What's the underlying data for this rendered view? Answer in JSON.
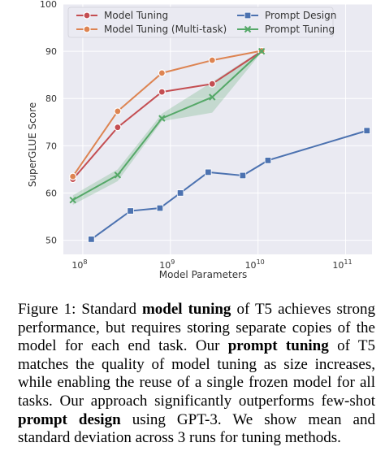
{
  "chart_data": {
    "type": "line",
    "xlabel": "Model Parameters",
    "ylabel": "SuperGLUE Score",
    "xscale": "log",
    "xlim": [
      60000000,
      200000000000
    ],
    "ylim": [
      47,
      100
    ],
    "yticks": [
      50,
      60,
      70,
      80,
      90,
      100
    ],
    "xticks": [
      {
        "value": 100000000,
        "base": "10",
        "exp": "8"
      },
      {
        "value": 1000000000,
        "base": "10",
        "exp": "9"
      },
      {
        "value": 10000000000,
        "base": "10",
        "exp": "10"
      },
      {
        "value": 100000000000,
        "base": "10",
        "exp": "11"
      }
    ],
    "grid": true,
    "legend_position": "top",
    "series": [
      {
        "name": "Model Tuning",
        "color": "#c44e52",
        "marker": "circle",
        "x": [
          77000000,
          250000000,
          800000000,
          3000000000,
          11000000000
        ],
        "y": [
          62.9,
          73.9,
          81.4,
          83.1,
          90.0
        ]
      },
      {
        "name": "Model Tuning (Multi-task)",
        "color": "#dd8452",
        "marker": "circle",
        "x": [
          77000000,
          250000000,
          800000000,
          3000000000,
          11000000000
        ],
        "y": [
          63.5,
          77.3,
          85.4,
          88.1,
          90.1
        ]
      },
      {
        "name": "Prompt Design",
        "color": "#4c72b0",
        "marker": "square",
        "x": [
          125000000,
          350000000,
          760000000,
          1300000000,
          2700000000,
          6700000000,
          13000000000,
          175000000000
        ],
        "y": [
          50.2,
          56.2,
          56.8,
          60.0,
          64.4,
          63.7,
          66.9,
          73.2
        ]
      },
      {
        "name": "Prompt Tuning",
        "color": "#55a868",
        "marker": "x",
        "x": [
          77000000,
          250000000,
          800000000,
          3000000000,
          11000000000
        ],
        "y": [
          58.5,
          63.8,
          75.8,
          80.3,
          90.0
        ],
        "band": [
          [
            57.5,
            59.5
          ],
          [
            62.5,
            65.0
          ],
          [
            75.2,
            76.8
          ],
          [
            77.0,
            83.5
          ],
          [
            89.8,
            90.3
          ]
        ]
      }
    ]
  },
  "caption": {
    "lead": "Figure 1: Standard ",
    "bold1": "model tuning",
    "part2": " of T5 achieves strong performance, but requires storing separate copies of the model for each end task.  Our ",
    "bold2": "prompt tuning",
    "part3": " of T5 matches the quality of model tuning as size increases, while enabling the reuse of a single frozen model for all tasks. Our approach significantly outperforms few-shot ",
    "bold3": "prompt design",
    "part4": " using GPT-3. We show mean and standard deviation across 3 runs for tuning methods."
  }
}
